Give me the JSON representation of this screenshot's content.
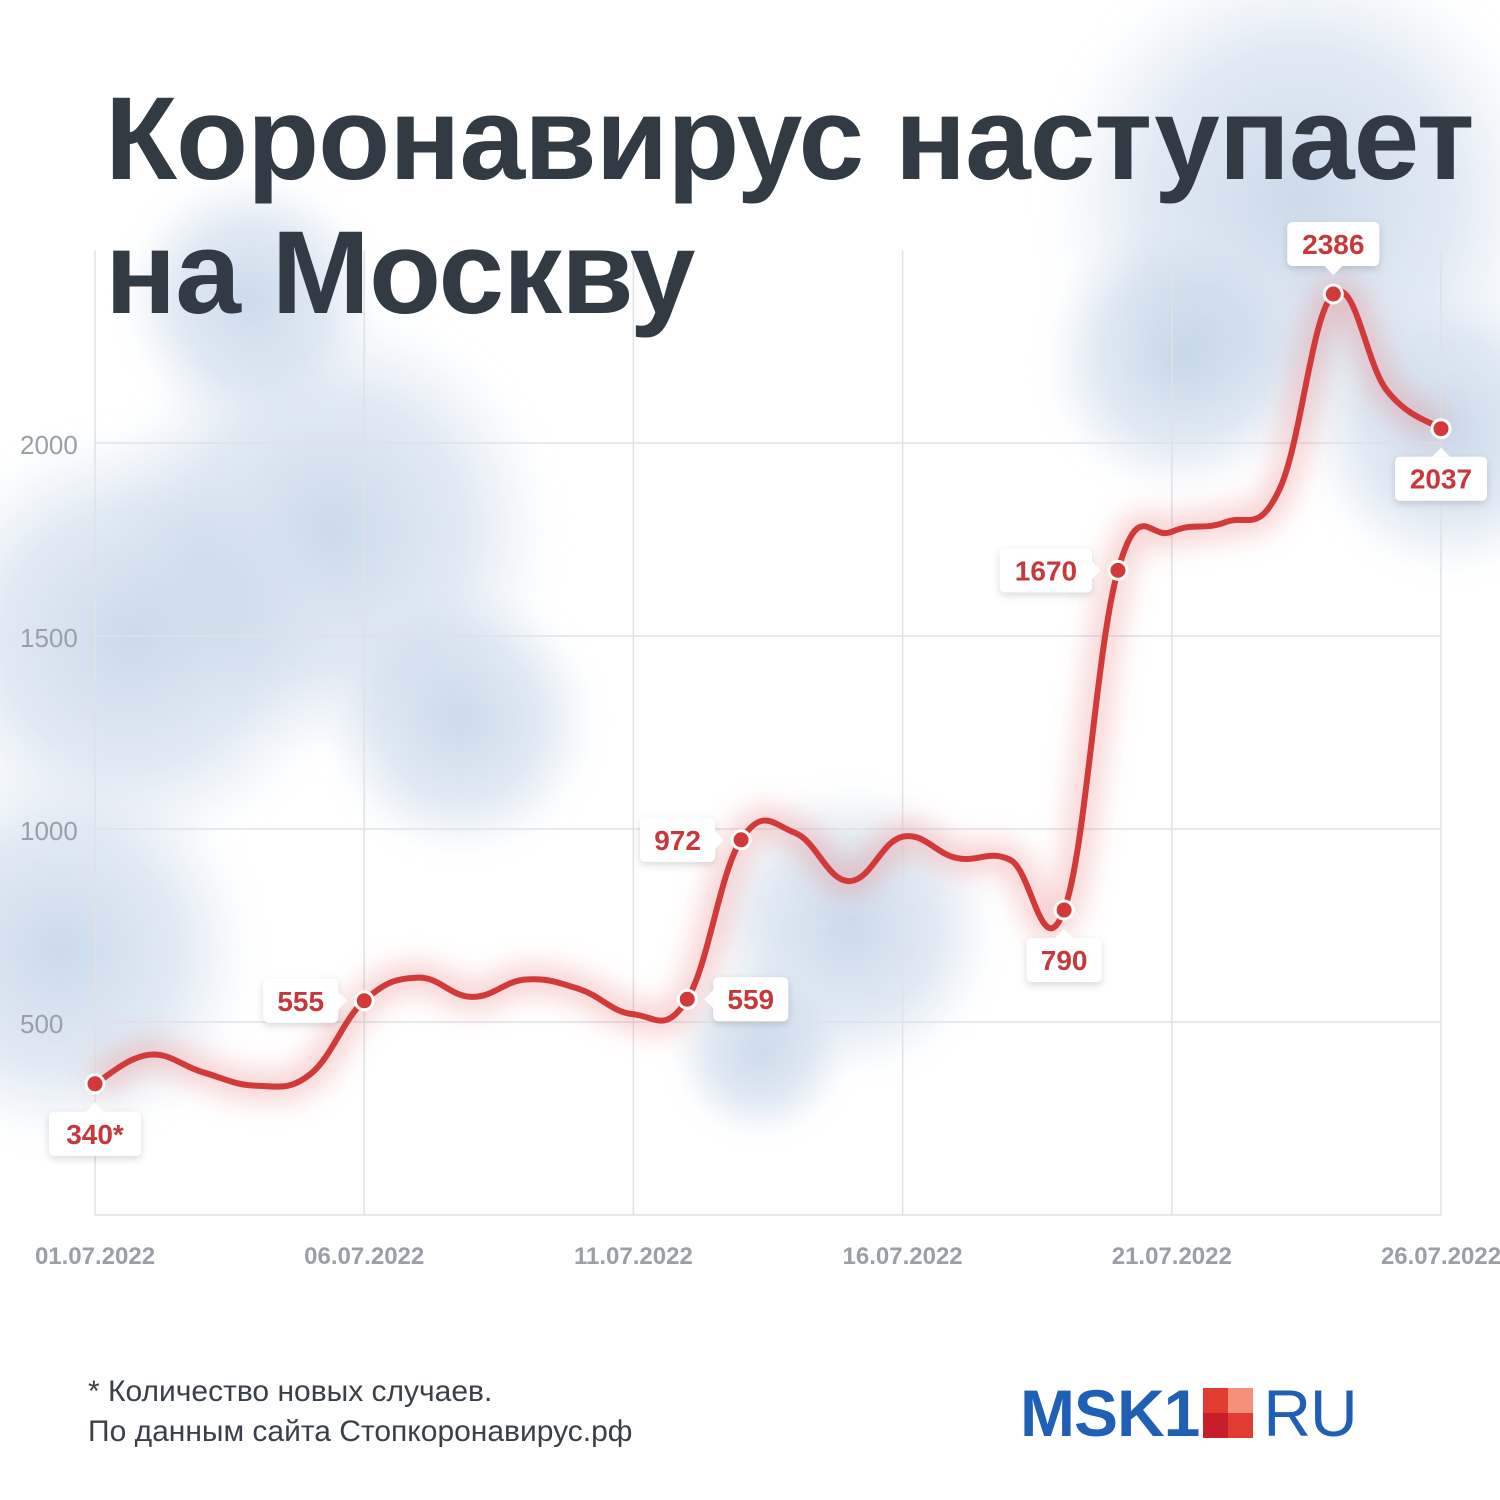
{
  "title": {
    "line1": "Коронавирус наступает",
    "line2": "на Москву"
  },
  "footnote": {
    "line1": "* Количество новых случаев.",
    "line2": "По данным сайта Стопкоронавирус.рф"
  },
  "logo": {
    "left": "MSK1",
    "right": "RU"
  },
  "colors": {
    "line": "#d23a3a",
    "label": "#c8373a",
    "title": "#323a43",
    "axis": "#9aa0a6",
    "brand": "#1f5fb5",
    "brand_red": "#e03c31",
    "brand_pink": "#f4907a"
  },
  "chart_data": {
    "type": "line",
    "title": "",
    "xlabel": "",
    "ylabel": "",
    "x": [
      "01.07.2022",
      "02.07.2022",
      "03.07.2022",
      "04.07.2022",
      "05.07.2022",
      "06.07.2022",
      "07.07.2022",
      "08.07.2022",
      "09.07.2022",
      "10.07.2022",
      "11.07.2022",
      "12.07.2022",
      "13.07.2022",
      "14.07.2022",
      "15.07.2022",
      "16.07.2022",
      "17.07.2022",
      "18.07.2022",
      "19.07.2022",
      "20.07.2022",
      "21.07.2022",
      "22.07.2022",
      "23.07.2022",
      "24.07.2022",
      "25.07.2022",
      "26.07.2022"
    ],
    "series": [
      {
        "values": [
          340,
          415,
          370,
          335,
          365,
          555,
          615,
          565,
          610,
          585,
          520,
          559,
          972,
          990,
          865,
          980,
          925,
          920,
          790,
          1670,
          1770,
          1795,
          1880,
          2386,
          2135,
          2037
        ]
      }
    ],
    "ylim": [
      0,
      2500
    ],
    "yticks": [
      500,
      1000,
      1500,
      2000
    ],
    "ytick_labels": [
      "500",
      "1000",
      "1500",
      "2000"
    ],
    "xticks": [
      "01.07.2022",
      "06.07.2022",
      "11.07.2022",
      "16.07.2022",
      "21.07.2022",
      "26.07.2022"
    ],
    "annotations": [
      {
        "x": "01.07.2022",
        "text": "340*",
        "pos": "below"
      },
      {
        "x": "06.07.2022",
        "text": "555",
        "pos": "left"
      },
      {
        "x": "12.07.2022",
        "text": "559",
        "pos": "right"
      },
      {
        "x": "13.07.2022",
        "text": "972",
        "pos": "left"
      },
      {
        "x": "19.07.2022",
        "text": "790",
        "pos": "below"
      },
      {
        "x": "20.07.2022",
        "text": "1670",
        "pos": "left"
      },
      {
        "x": "24.07.2022",
        "text": "2386",
        "pos": "above"
      },
      {
        "x": "26.07.2022",
        "text": "2037",
        "pos": "below"
      }
    ],
    "grid": true,
    "legend": "none"
  }
}
